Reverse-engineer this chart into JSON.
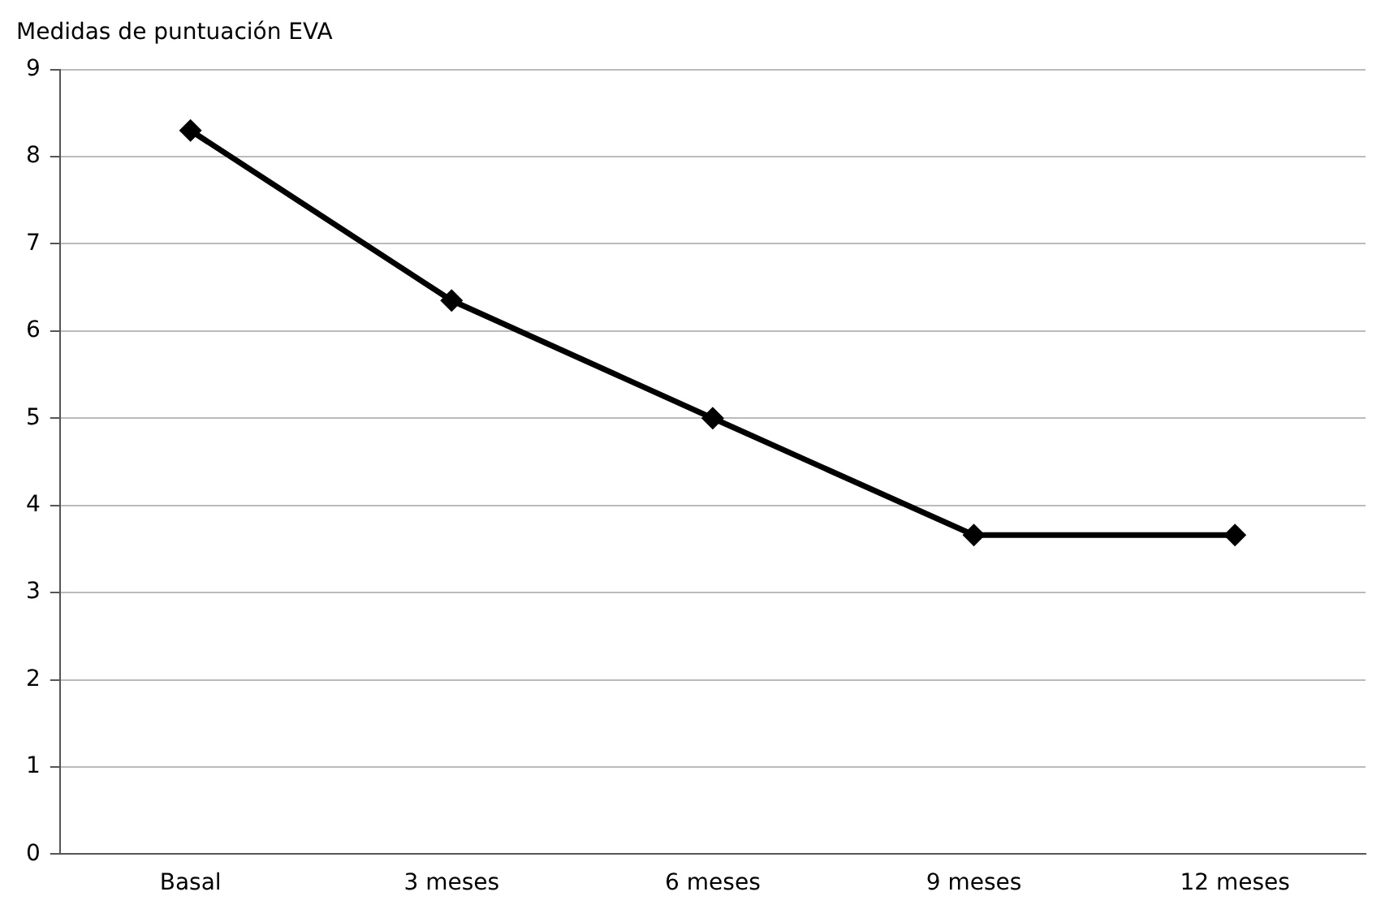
{
  "chart_data": {
    "type": "line",
    "title": "Medidas de puntuación EVA",
    "categories": [
      "Basal",
      "3 meses",
      "6 meses",
      "9 meses",
      "12 meses"
    ],
    "series": [
      {
        "color": "#000000",
        "values": [
          8.3,
          6.35,
          5.0,
          3.66,
          3.66
        ]
      }
    ],
    "ylim": [
      0,
      9
    ],
    "yticks": [
      0,
      1,
      2,
      3,
      4,
      5,
      6,
      7,
      8,
      9
    ],
    "grid": "y",
    "legend": false,
    "marker": "diamond",
    "line_style": "solid"
  }
}
